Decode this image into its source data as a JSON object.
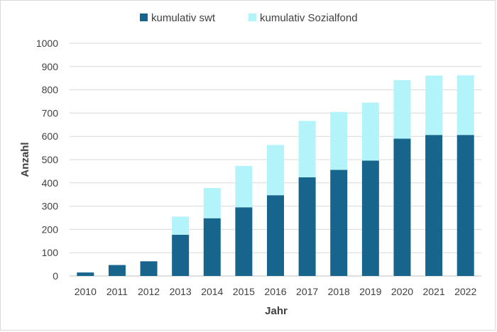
{
  "chart_data": {
    "type": "bar",
    "stacked": true,
    "title": "",
    "xlabel": "Jahr",
    "ylabel": "Anzahl",
    "ylim": [
      0,
      1000
    ],
    "yticks": [
      "0",
      "100",
      "200",
      "300",
      "400",
      "500",
      "600",
      "700",
      "800",
      "900",
      "1000"
    ],
    "grid": true,
    "legend_position": "top",
    "categories": [
      "2010",
      "2011",
      "2012",
      "2013",
      "2014",
      "2015",
      "2016",
      "2017",
      "2018",
      "2019",
      "2020",
      "2021",
      "2022"
    ],
    "series": [
      {
        "name": "kumulativ swt",
        "color": "#17648c",
        "values": [
          15,
          47,
          63,
          177,
          248,
          295,
          347,
          424,
          456,
          496,
          590,
          606,
          606
        ]
      },
      {
        "name": "kumulativ Sozialfond",
        "color": "#b3f4fa",
        "values": [
          0,
          0,
          0,
          78,
          130,
          178,
          216,
          242,
          249,
          249,
          252,
          255,
          256
        ]
      }
    ]
  }
}
